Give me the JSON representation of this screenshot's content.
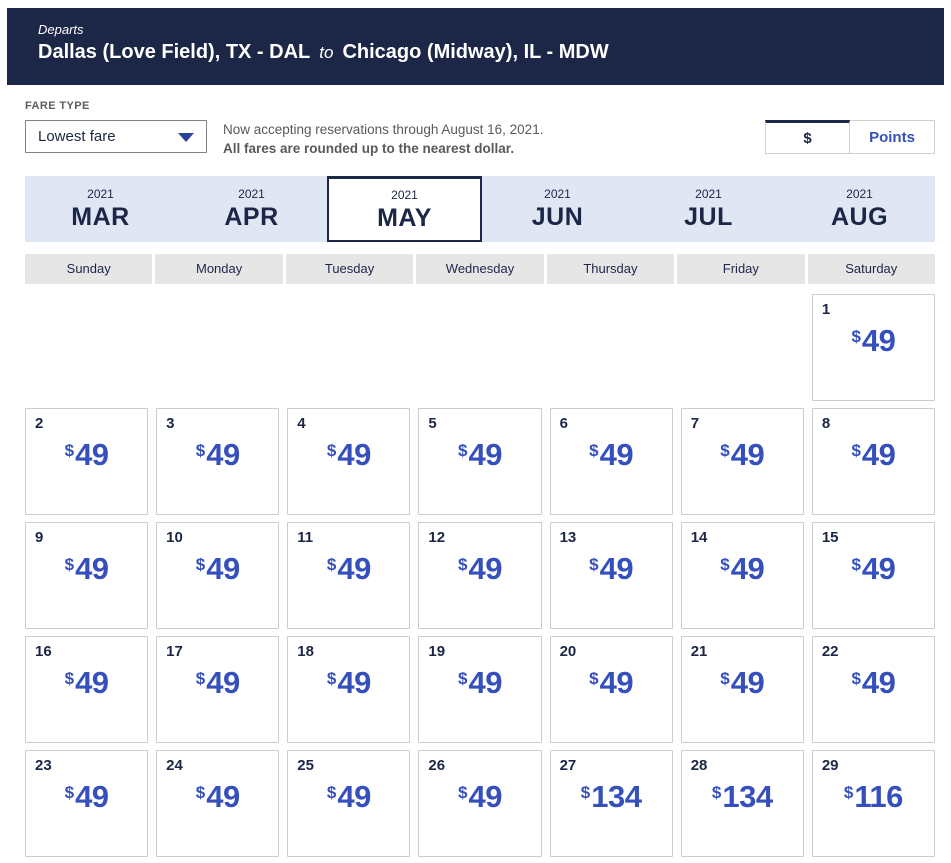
{
  "route_header": {
    "departs_label": "Departs",
    "origin": "Dallas (Love Field), TX - DAL",
    "to_label": "to",
    "destination": "Chicago (Midway), IL - MDW"
  },
  "fare_type": {
    "label": "FARE TYPE",
    "selected_option": "Lowest fare"
  },
  "notice": {
    "line1": "Now accepting reservations through August 16, 2021.",
    "line2": "All fares are rounded up to the nearest dollar."
  },
  "currency_toggle": {
    "dollar_label": "$",
    "points_label": "Points",
    "selected": "dollar"
  },
  "month_tabs": [
    {
      "year": "2021",
      "label": "MAR",
      "selected": false
    },
    {
      "year": "2021",
      "label": "APR",
      "selected": false
    },
    {
      "year": "2021",
      "label": "MAY",
      "selected": true
    },
    {
      "year": "2021",
      "label": "JUN",
      "selected": false
    },
    {
      "year": "2021",
      "label": "JUL",
      "selected": false
    },
    {
      "year": "2021",
      "label": "AUG",
      "selected": false
    }
  ],
  "weekday_headers": [
    "Sunday",
    "Monday",
    "Tuesday",
    "Wednesday",
    "Thursday",
    "Friday",
    "Saturday"
  ],
  "calendar_weeks": [
    [
      null,
      null,
      null,
      null,
      null,
      null,
      {
        "day": "1",
        "currency": "$",
        "price": "49"
      }
    ],
    [
      {
        "day": "2",
        "currency": "$",
        "price": "49"
      },
      {
        "day": "3",
        "currency": "$",
        "price": "49"
      },
      {
        "day": "4",
        "currency": "$",
        "price": "49"
      },
      {
        "day": "5",
        "currency": "$",
        "price": "49"
      },
      {
        "day": "6",
        "currency": "$",
        "price": "49"
      },
      {
        "day": "7",
        "currency": "$",
        "price": "49"
      },
      {
        "day": "8",
        "currency": "$",
        "price": "49"
      }
    ],
    [
      {
        "day": "9",
        "currency": "$",
        "price": "49"
      },
      {
        "day": "10",
        "currency": "$",
        "price": "49"
      },
      {
        "day": "11",
        "currency": "$",
        "price": "49"
      },
      {
        "day": "12",
        "currency": "$",
        "price": "49"
      },
      {
        "day": "13",
        "currency": "$",
        "price": "49"
      },
      {
        "day": "14",
        "currency": "$",
        "price": "49"
      },
      {
        "day": "15",
        "currency": "$",
        "price": "49"
      }
    ],
    [
      {
        "day": "16",
        "currency": "$",
        "price": "49"
      },
      {
        "day": "17",
        "currency": "$",
        "price": "49"
      },
      {
        "day": "18",
        "currency": "$",
        "price": "49"
      },
      {
        "day": "19",
        "currency": "$",
        "price": "49"
      },
      {
        "day": "20",
        "currency": "$",
        "price": "49"
      },
      {
        "day": "21",
        "currency": "$",
        "price": "49"
      },
      {
        "day": "22",
        "currency": "$",
        "price": "49"
      }
    ],
    [
      {
        "day": "23",
        "currency": "$",
        "price": "49"
      },
      {
        "day": "24",
        "currency": "$",
        "price": "49"
      },
      {
        "day": "25",
        "currency": "$",
        "price": "49"
      },
      {
        "day": "26",
        "currency": "$",
        "price": "49"
      },
      {
        "day": "27",
        "currency": "$",
        "price": "134"
      },
      {
        "day": "28",
        "currency": "$",
        "price": "134"
      },
      {
        "day": "29",
        "currency": "$",
        "price": "116"
      }
    ]
  ],
  "colors": {
    "header_navy": "#1c2647",
    "fare_blue": "#3550bc",
    "month_strip_blue": "#e1e6f4",
    "weekday_gray": "#e6e6e6"
  }
}
